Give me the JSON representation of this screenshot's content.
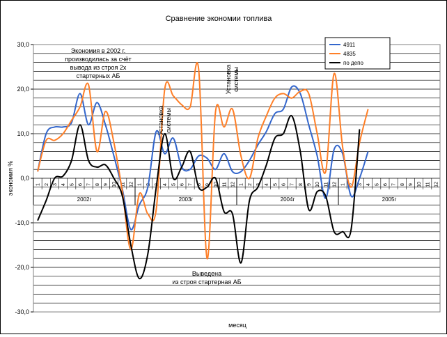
{
  "chart_data": {
    "type": "line",
    "title": "Сравнение экономии топлива",
    "xlabel": "месяц",
    "ylabel": "экономия %",
    "ylim": [
      -30,
      30
    ],
    "y_ticks": [
      "30,0",
      "20,0",
      "10,0",
      "0,0",
      "-10,0",
      "-20,0",
      "-30,0"
    ],
    "y_tick_values": [
      30,
      20,
      10,
      0,
      -10,
      -20,
      -30
    ],
    "grid": true,
    "grid_step": 2,
    "legend_position": "top-right",
    "months": [
      "1",
      "2",
      "3",
      "4",
      "5",
      "6",
      "7",
      "8",
      "9",
      "10",
      "11",
      "12",
      "1",
      "2",
      "3",
      "4",
      "5",
      "6",
      "7",
      "8",
      "9",
      "10",
      "11",
      "12",
      "1",
      "2",
      "3",
      "4",
      "5",
      "6",
      "7",
      "8",
      "9",
      "10",
      "11",
      "12",
      "1",
      "2",
      "3",
      "4",
      "5",
      "6",
      "7",
      "8",
      "9",
      "10",
      "11",
      "12"
    ],
    "years": [
      {
        "label": "2002г",
        "start": 0,
        "end": 12
      },
      {
        "label": "2003г",
        "start": 12,
        "end": 24
      },
      {
        "label": "2004г",
        "start": 24,
        "end": 36
      },
      {
        "label": "2005г",
        "start": 36,
        "end": 48
      }
    ],
    "series": [
      {
        "name": "4911",
        "color": "#3366cc",
        "points": [
          [
            0,
            1.5
          ],
          [
            1,
            10
          ],
          [
            2,
            11.5
          ],
          [
            3,
            11.5
          ],
          [
            4,
            12.5
          ],
          [
            5,
            19
          ],
          [
            6,
            12
          ],
          [
            7,
            17
          ],
          [
            8,
            12
          ],
          [
            9,
            5
          ],
          [
            10,
            -2.5
          ],
          [
            11,
            -11.5
          ],
          [
            12,
            -6
          ],
          [
            13,
            -2
          ],
          [
            14,
            10.5
          ],
          [
            15,
            5.5
          ],
          [
            16,
            9
          ],
          [
            17,
            2.5
          ],
          [
            18,
            2
          ],
          [
            19,
            5
          ],
          [
            20,
            4.5
          ],
          [
            21,
            2
          ],
          [
            22,
            5.5
          ],
          [
            23,
            1.5
          ],
          [
            24,
            1.5
          ],
          [
            25,
            4
          ],
          [
            26,
            7.5
          ],
          [
            27,
            10.5
          ],
          [
            28,
            14.5
          ],
          [
            29,
            15.5
          ],
          [
            30,
            20.5
          ],
          [
            31,
            19
          ],
          [
            32,
            12
          ],
          [
            33,
            5
          ],
          [
            34,
            -4.5
          ],
          [
            35,
            6.5
          ],
          [
            36,
            5.5
          ],
          [
            37,
            -4
          ],
          [
            38,
            0
          ],
          [
            39,
            6
          ]
        ]
      },
      {
        "name": "4835",
        "color": "#ff7f27",
        "points": [
          [
            0,
            1.5
          ],
          [
            1,
            8.5
          ],
          [
            2,
            8.5
          ],
          [
            3,
            10
          ],
          [
            4,
            13
          ],
          [
            5,
            16
          ],
          [
            6,
            21
          ],
          [
            7,
            6
          ],
          [
            8,
            15
          ],
          [
            9,
            8
          ],
          [
            10,
            -3
          ],
          [
            11,
            -16
          ],
          [
            12,
            -3.5
          ],
          [
            13,
            -8
          ],
          [
            14,
            -7
          ],
          [
            15,
            20
          ],
          [
            16,
            18.5
          ],
          [
            17,
            16.5
          ],
          [
            18,
            16
          ],
          [
            19,
            24.5
          ],
          [
            20,
            -18
          ],
          [
            21,
            15
          ],
          [
            22,
            11.5
          ],
          [
            23,
            15.5
          ],
          [
            24,
            5
          ],
          [
            25,
            0
          ],
          [
            26,
            9
          ],
          [
            27,
            14
          ],
          [
            28,
            18
          ],
          [
            29,
            19
          ],
          [
            30,
            18
          ],
          [
            31,
            19.5
          ],
          [
            32,
            19
          ],
          [
            33,
            10
          ],
          [
            34,
            1.5
          ],
          [
            35,
            23.5
          ],
          [
            36,
            7
          ],
          [
            37,
            -2
          ],
          [
            38,
            8
          ],
          [
            39,
            15.5
          ]
        ]
      },
      {
        "name": "по депо",
        "color": "#000000",
        "points": [
          [
            0,
            -9.5
          ],
          [
            1,
            -5
          ],
          [
            2,
            0
          ],
          [
            3,
            0.5
          ],
          [
            4,
            4
          ],
          [
            5,
            12
          ],
          [
            6,
            4
          ],
          [
            7,
            2.5
          ],
          [
            8,
            3
          ],
          [
            9,
            0
          ],
          [
            10,
            -4
          ],
          [
            11,
            -15
          ],
          [
            12,
            -22.5
          ],
          [
            13,
            -17
          ],
          [
            14,
            -2
          ],
          [
            15,
            10
          ],
          [
            16,
            0
          ],
          [
            17,
            2.5
          ],
          [
            18,
            6
          ],
          [
            19,
            -2
          ],
          [
            20,
            -2
          ],
          [
            21,
            0
          ],
          [
            22,
            -7.5
          ],
          [
            23,
            -8
          ],
          [
            24,
            -19
          ],
          [
            25,
            -5
          ],
          [
            26,
            -2
          ],
          [
            27,
            3
          ],
          [
            28,
            9
          ],
          [
            29,
            10
          ],
          [
            30,
            14
          ],
          [
            31,
            6
          ],
          [
            32,
            -7
          ],
          [
            33,
            -3
          ],
          [
            34,
            -4
          ],
          [
            35,
            -12
          ],
          [
            36,
            -12
          ],
          [
            37,
            -11.5
          ],
          [
            38,
            11
          ]
        ]
      }
    ],
    "annotations": [
      {
        "id": "note-2002",
        "lines": [
          "Экономия в 2002 г.",
          "производилась за счёт",
          "вывода из строя 2х",
          "стартерных АБ"
        ]
      },
      {
        "id": "note-removed",
        "lines": [
          "Выведена",
          "из строя стартерная АБ"
        ]
      },
      {
        "id": "note-install-1",
        "lines": [
          "Установка",
          "системы"
        ]
      },
      {
        "id": "note-install-2",
        "lines": [
          "Установка",
          "системы"
        ]
      }
    ]
  }
}
